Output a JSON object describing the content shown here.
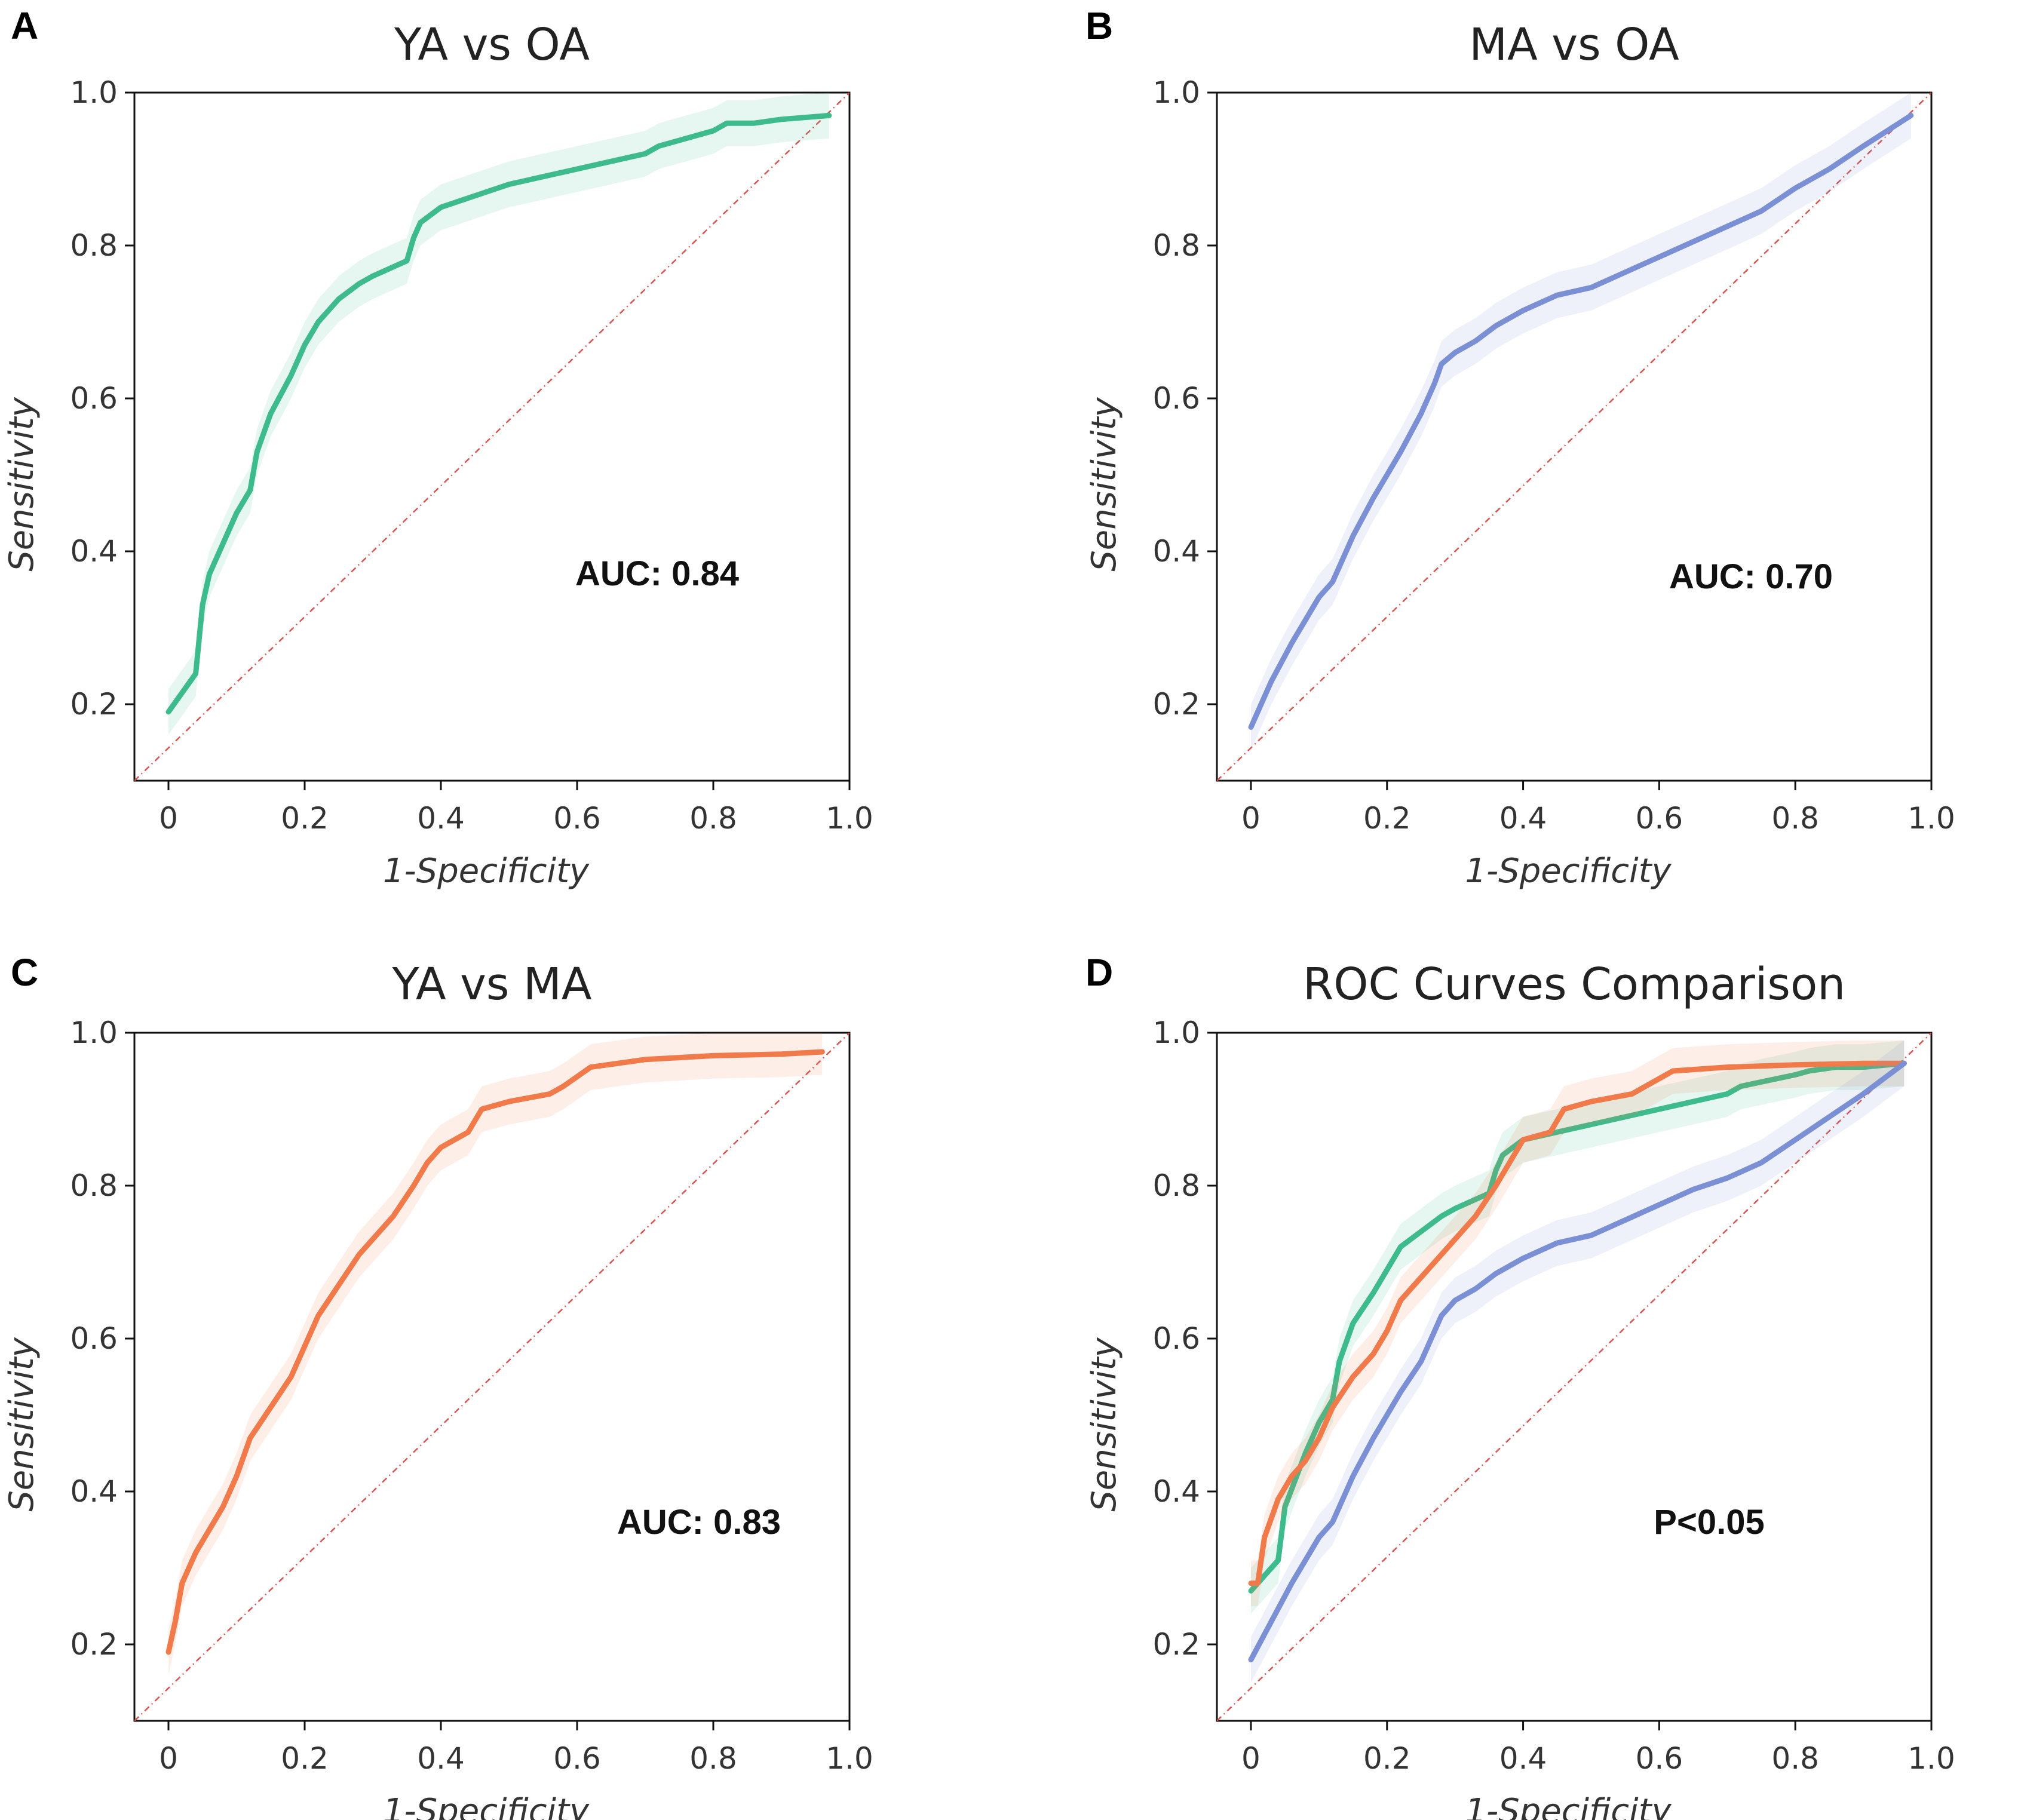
{
  "chart_data": [
    {
      "panel": "A",
      "type": "line",
      "title": "YA vs OA",
      "xlabel": "1-Specificity",
      "ylabel": "Sensitivity",
      "xlim": [
        -0.05,
        1.0
      ],
      "ylim": [
        0.1,
        1.0
      ],
      "xticks": [
        "0",
        "0.2",
        "0.4",
        "0.6",
        "0.8",
        "1.0"
      ],
      "yticks": [
        "0.2",
        "0.4",
        "0.6",
        "0.8",
        "1.0"
      ],
      "annotation": "AUC: 0.84",
      "diagonal": true,
      "series": [
        {
          "name": "YA vs OA",
          "color": "#3dbb8c",
          "x": [
            0,
            0.04,
            0.05,
            0.06,
            0.08,
            0.1,
            0.12,
            0.13,
            0.15,
            0.18,
            0.2,
            0.22,
            0.25,
            0.28,
            0.3,
            0.35,
            0.36,
            0.37,
            0.4,
            0.5,
            0.6,
            0.7,
            0.72,
            0.8,
            0.82,
            0.86,
            0.9,
            0.97
          ],
          "y": [
            0.19,
            0.24,
            0.33,
            0.37,
            0.41,
            0.45,
            0.48,
            0.53,
            0.58,
            0.63,
            0.67,
            0.7,
            0.73,
            0.75,
            0.76,
            0.78,
            0.81,
            0.83,
            0.85,
            0.88,
            0.9,
            0.92,
            0.93,
            0.95,
            0.96,
            0.96,
            0.965,
            0.97
          ]
        }
      ]
    },
    {
      "panel": "B",
      "type": "line",
      "title": "MA vs OA",
      "xlabel": "1-Specificity",
      "ylabel": "Sensitivity",
      "xlim": [
        -0.05,
        1.0
      ],
      "ylim": [
        0.1,
        1.0
      ],
      "xticks": [
        "0",
        "0.2",
        "0.4",
        "0.6",
        "0.8",
        "1.0"
      ],
      "yticks": [
        "0.2",
        "0.4",
        "0.6",
        "0.8",
        "1.0"
      ],
      "annotation": "AUC: 0.70",
      "diagonal": true,
      "series": [
        {
          "name": "MA vs OA",
          "color": "#7b8fd4",
          "x": [
            0,
            0.03,
            0.06,
            0.1,
            0.12,
            0.15,
            0.18,
            0.2,
            0.22,
            0.25,
            0.27,
            0.28,
            0.3,
            0.33,
            0.36,
            0.4,
            0.45,
            0.5,
            0.55,
            0.6,
            0.65,
            0.7,
            0.75,
            0.8,
            0.85,
            0.9,
            0.97
          ],
          "y": [
            0.17,
            0.23,
            0.28,
            0.34,
            0.36,
            0.42,
            0.47,
            0.5,
            0.53,
            0.58,
            0.62,
            0.645,
            0.66,
            0.675,
            0.695,
            0.715,
            0.735,
            0.745,
            0.765,
            0.785,
            0.805,
            0.825,
            0.845,
            0.875,
            0.9,
            0.93,
            0.97
          ]
        }
      ]
    },
    {
      "panel": "C",
      "type": "line",
      "title": "YA vs MA",
      "xlabel": "1-Specificity",
      "ylabel": "Sensitivity",
      "xlim": [
        -0.05,
        1.0
      ],
      "ylim": [
        0.1,
        1.0
      ],
      "xticks": [
        "0",
        "0.2",
        "0.4",
        "0.6",
        "0.8",
        "1.0"
      ],
      "yticks": [
        "0.2",
        "0.4",
        "0.6",
        "0.8",
        "1.0"
      ],
      "annotation": "AUC: 0.83",
      "diagonal": true,
      "series": [
        {
          "name": "YA vs MA",
          "color": "#f07a4a",
          "x": [
            0,
            0.01,
            0.02,
            0.04,
            0.06,
            0.08,
            0.1,
            0.12,
            0.15,
            0.18,
            0.2,
            0.22,
            0.25,
            0.28,
            0.3,
            0.33,
            0.36,
            0.38,
            0.4,
            0.44,
            0.46,
            0.5,
            0.56,
            0.58,
            0.62,
            0.7,
            0.8,
            0.9,
            0.96
          ],
          "y": [
            0.19,
            0.23,
            0.28,
            0.32,
            0.35,
            0.38,
            0.42,
            0.47,
            0.51,
            0.55,
            0.59,
            0.63,
            0.67,
            0.71,
            0.73,
            0.76,
            0.8,
            0.83,
            0.85,
            0.87,
            0.9,
            0.91,
            0.92,
            0.93,
            0.955,
            0.965,
            0.97,
            0.972,
            0.975
          ]
        }
      ]
    },
    {
      "panel": "D",
      "type": "line",
      "title": "ROC Curves Comparison",
      "xlabel": "1-Specificity",
      "ylabel": "Sensitivity",
      "xlim": [
        -0.05,
        1.0
      ],
      "ylim": [
        0.1,
        1.0
      ],
      "xticks": [
        "0",
        "0.2",
        "0.4",
        "0.6",
        "0.8",
        "1.0"
      ],
      "yticks": [
        "0.2",
        "0.4",
        "0.6",
        "0.8",
        "1.0"
      ],
      "annotation": "P<0.05",
      "diagonal": true,
      "series": [
        {
          "name": "YA vs OA",
          "color": "#3dbb8c",
          "x": [
            0,
            0.01,
            0.04,
            0.05,
            0.08,
            0.1,
            0.12,
            0.13,
            0.15,
            0.18,
            0.2,
            0.22,
            0.25,
            0.28,
            0.3,
            0.35,
            0.36,
            0.37,
            0.4,
            0.5,
            0.6,
            0.7,
            0.72,
            0.8,
            0.82,
            0.86,
            0.9,
            0.96
          ],
          "y": [
            0.27,
            0.28,
            0.31,
            0.38,
            0.45,
            0.49,
            0.52,
            0.57,
            0.62,
            0.66,
            0.69,
            0.72,
            0.74,
            0.76,
            0.77,
            0.79,
            0.82,
            0.84,
            0.86,
            0.88,
            0.9,
            0.92,
            0.93,
            0.945,
            0.95,
            0.955,
            0.955,
            0.96
          ]
        },
        {
          "name": "YA vs MA",
          "color": "#f07a4a",
          "x": [
            0,
            0.01,
            0.02,
            0.04,
            0.06,
            0.08,
            0.1,
            0.12,
            0.15,
            0.18,
            0.2,
            0.22,
            0.25,
            0.28,
            0.3,
            0.33,
            0.36,
            0.38,
            0.4,
            0.44,
            0.46,
            0.5,
            0.56,
            0.58,
            0.62,
            0.7,
            0.8,
            0.9,
            0.96
          ],
          "y": [
            0.28,
            0.28,
            0.34,
            0.39,
            0.42,
            0.44,
            0.47,
            0.51,
            0.55,
            0.58,
            0.61,
            0.65,
            0.68,
            0.71,
            0.73,
            0.76,
            0.8,
            0.83,
            0.86,
            0.87,
            0.9,
            0.91,
            0.92,
            0.93,
            0.95,
            0.955,
            0.958,
            0.96,
            0.96
          ]
        },
        {
          "name": "MA vs OA",
          "color": "#7b8fd4",
          "x": [
            0,
            0.03,
            0.06,
            0.1,
            0.12,
            0.15,
            0.18,
            0.2,
            0.22,
            0.25,
            0.27,
            0.28,
            0.3,
            0.33,
            0.36,
            0.4,
            0.45,
            0.5,
            0.55,
            0.6,
            0.65,
            0.7,
            0.75,
            0.8,
            0.85,
            0.9,
            0.96
          ],
          "y": [
            0.18,
            0.23,
            0.28,
            0.34,
            0.36,
            0.42,
            0.47,
            0.5,
            0.53,
            0.57,
            0.61,
            0.63,
            0.65,
            0.665,
            0.685,
            0.705,
            0.725,
            0.735,
            0.755,
            0.775,
            0.795,
            0.81,
            0.83,
            0.86,
            0.89,
            0.92,
            0.96
          ]
        }
      ]
    }
  ]
}
